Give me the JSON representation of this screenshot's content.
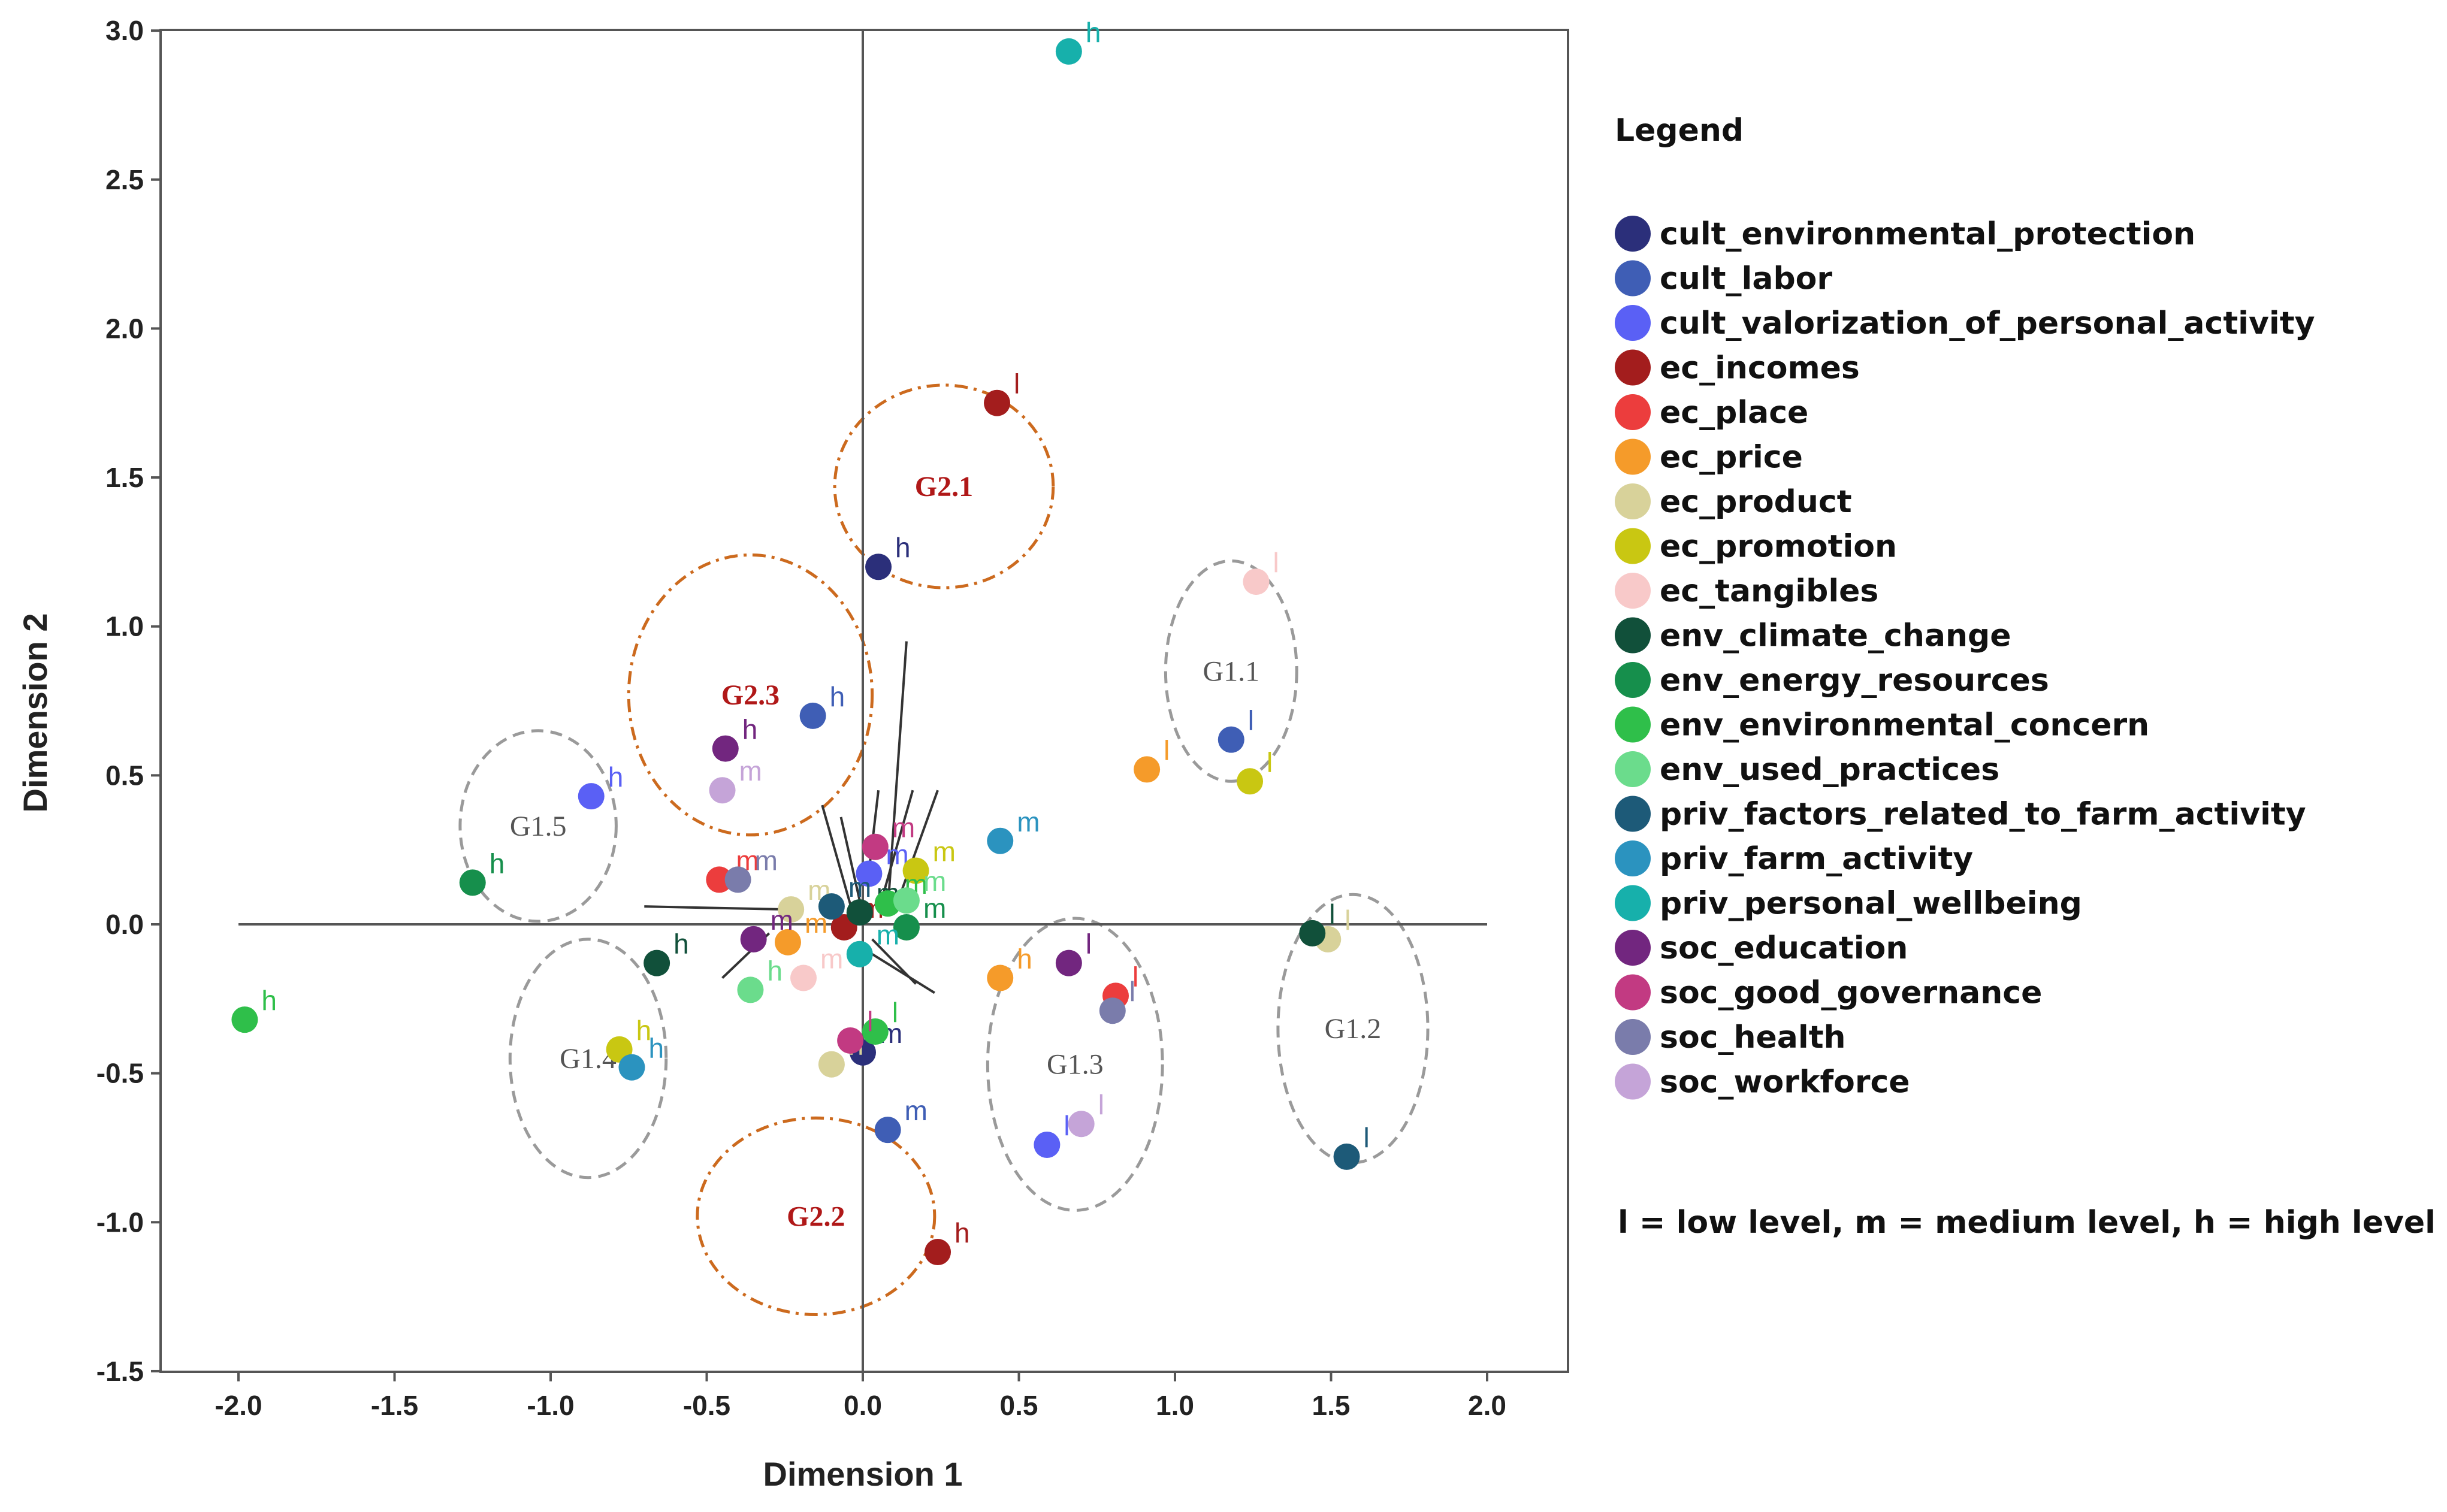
{
  "chart_data": {
    "type": "scatter",
    "xlabel": "Dimension 1",
    "ylabel": "Dimension 2",
    "xlim": [
      -2.25,
      2.25
    ],
    "ylim": [
      -1.5,
      3.0
    ],
    "xticks": [
      "-2.0",
      "-1.5",
      "-1.0",
      "-0.5",
      "0.0",
      "0.5",
      "1.0",
      "1.5",
      "2.0"
    ],
    "xtick_values": [
      -2.0,
      -1.5,
      -1.0,
      -0.5,
      0.0,
      0.5,
      1.0,
      1.5,
      2.0
    ],
    "yticks": [
      "-1.5",
      "-1.0",
      "-0.5",
      "0.0",
      "0.5",
      "1.0",
      "1.5",
      "2.0",
      "2.5",
      "3.0"
    ],
    "ytick_values": [
      -1.5,
      -1.0,
      -0.5,
      0.0,
      0.5,
      1.0,
      1.5,
      2.0,
      2.5,
      3.0
    ],
    "legend_title": "Legend",
    "legend_note": "l = low level, m = medium level, h = high level",
    "series": [
      {
        "name": "cult_environmental_protection",
        "color": "#2b2f7a"
      },
      {
        "name": "cult_labor",
        "color": "#3f5eb5"
      },
      {
        "name": "cult_valorization_of_personal_activity",
        "color": "#5a60f5"
      },
      {
        "name": "ec_incomes",
        "color": "#a31d1d"
      },
      {
        "name": "ec_place",
        "color": "#ec3d3d"
      },
      {
        "name": "ec_price",
        "color": "#f59b2a"
      },
      {
        "name": "ec_product",
        "color": "#d8d29a"
      },
      {
        "name": "ec_promotion",
        "color": "#c9c712"
      },
      {
        "name": "ec_tangibles",
        "color": "#f8c9c9"
      },
      {
        "name": "env_climate_change",
        "color": "#11503a"
      },
      {
        "name": "env_energy_resources",
        "color": "#168f4c"
      },
      {
        "name": "env_environmental_concern",
        "color": "#2fbf4a"
      },
      {
        "name": "env_used_practices",
        "color": "#6bdc8c"
      },
      {
        "name": "priv_factors_related_to_farm_activity",
        "color": "#1d5a78"
      },
      {
        "name": "priv_farm_activity",
        "color": "#2b93bf"
      },
      {
        "name": "priv_personal_wellbeing",
        "color": "#17b0ab"
      },
      {
        "name": "soc_education",
        "color": "#72267f"
      },
      {
        "name": "soc_good_governance",
        "color": "#c23a82"
      },
      {
        "name": "soc_health",
        "color": "#7a7cab"
      },
      {
        "name": "soc_workforce",
        "color": "#c5a4d8"
      }
    ],
    "points": [
      {
        "series": 0,
        "level": "h",
        "x": 0.05,
        "y": 1.2
      },
      {
        "series": 0,
        "level": "m",
        "x": 0.0,
        "y": -0.43
      },
      {
        "series": 1,
        "level": "h",
        "x": -0.16,
        "y": 0.7
      },
      {
        "series": 1,
        "level": "l",
        "x": 1.18,
        "y": 0.62
      },
      {
        "series": 1,
        "level": "m",
        "x": 0.08,
        "y": -0.69
      },
      {
        "series": 2,
        "level": "h",
        "x": -0.87,
        "y": 0.43
      },
      {
        "series": 2,
        "level": "m",
        "x": 0.02,
        "y": 0.17
      },
      {
        "series": 2,
        "level": "l",
        "x": 0.59,
        "y": -0.74
      },
      {
        "series": 3,
        "level": "l",
        "x": 0.43,
        "y": 1.75
      },
      {
        "series": 3,
        "level": "h",
        "x": 0.24,
        "y": -1.1
      },
      {
        "series": 3,
        "level": "m",
        "x": -0.06,
        "y": -0.01
      },
      {
        "series": 4,
        "level": "m",
        "x": -0.46,
        "y": 0.15
      },
      {
        "series": 4,
        "level": "l",
        "x": 0.81,
        "y": -0.24
      },
      {
        "series": 5,
        "level": "l",
        "x": 0.91,
        "y": 0.52
      },
      {
        "series": 5,
        "level": "m",
        "x": -0.24,
        "y": -0.06
      },
      {
        "series": 5,
        "level": "h",
        "x": 0.44,
        "y": -0.18
      },
      {
        "series": 6,
        "level": "m",
        "x": -0.23,
        "y": 0.05
      },
      {
        "series": 6,
        "level": "h",
        "x": -0.1,
        "y": -0.47
      },
      {
        "series": 6,
        "level": "l",
        "x": 1.49,
        "y": -0.05
      },
      {
        "series": 7,
        "level": "l",
        "x": 1.24,
        "y": 0.48
      },
      {
        "series": 7,
        "level": "m",
        "x": 0.17,
        "y": 0.18
      },
      {
        "series": 7,
        "level": "h",
        "x": -0.78,
        "y": -0.42
      },
      {
        "series": 8,
        "level": "l",
        "x": 1.26,
        "y": 1.15
      },
      {
        "series": 8,
        "level": "m",
        "x": -0.19,
        "y": -0.18
      },
      {
        "series": 9,
        "level": "l",
        "x": 1.44,
        "y": -0.03
      },
      {
        "series": 9,
        "level": "m",
        "x": -0.01,
        "y": 0.04
      },
      {
        "series": 9,
        "level": "h",
        "x": -0.66,
        "y": -0.13
      },
      {
        "series": 10,
        "level": "h",
        "x": -1.25,
        "y": 0.14
      },
      {
        "series": 10,
        "level": "m",
        "x": 0.14,
        "y": -0.01
      },
      {
        "series": 11,
        "level": "h",
        "x": -1.98,
        "y": -0.32
      },
      {
        "series": 11,
        "level": "m",
        "x": 0.08,
        "y": 0.07
      },
      {
        "series": 11,
        "level": "l",
        "x": 0.04,
        "y": -0.36
      },
      {
        "series": 12,
        "level": "m",
        "x": 0.14,
        "y": 0.08
      },
      {
        "series": 12,
        "level": "h",
        "x": -0.36,
        "y": -0.22
      },
      {
        "series": 13,
        "level": "m",
        "x": -0.1,
        "y": 0.06
      },
      {
        "series": 13,
        "level": "l",
        "x": 1.55,
        "y": -0.78
      },
      {
        "series": 14,
        "level": "m",
        "x": 0.44,
        "y": 0.28
      },
      {
        "series": 14,
        "level": "h",
        "x": -0.74,
        "y": -0.48
      },
      {
        "series": 15,
        "level": "h",
        "x": 0.66,
        "y": 2.93
      },
      {
        "series": 15,
        "level": "m",
        "x": -0.01,
        "y": -0.1
      },
      {
        "series": 16,
        "level": "h",
        "x": -0.44,
        "y": 0.59
      },
      {
        "series": 16,
        "level": "m",
        "x": -0.35,
        "y": -0.05
      },
      {
        "series": 16,
        "level": "l",
        "x": 0.66,
        "y": -0.13
      },
      {
        "series": 17,
        "level": "m",
        "x": 0.04,
        "y": 0.26
      },
      {
        "series": 17,
        "level": "l",
        "x": -0.04,
        "y": -0.39
      },
      {
        "series": 18,
        "level": "m",
        "x": -0.4,
        "y": 0.15
      },
      {
        "series": 18,
        "level": "l",
        "x": 0.8,
        "y": -0.29
      },
      {
        "series": 19,
        "level": "m",
        "x": -0.45,
        "y": 0.45
      },
      {
        "series": 19,
        "level": "l",
        "x": 0.7,
        "y": -0.67
      }
    ],
    "annotations": [
      {
        "label": "G1.1",
        "cx": 1.18,
        "cy": 0.85,
        "style": "gray"
      },
      {
        "label": "G1.2",
        "cx": 1.57,
        "cy": -0.35,
        "style": "gray"
      },
      {
        "label": "G1.3",
        "cx": 0.68,
        "cy": -0.47,
        "style": "gray"
      },
      {
        "label": "G1.4",
        "cx": -0.88,
        "cy": -0.45,
        "style": "gray"
      },
      {
        "label": "G1.5",
        "cx": -1.04,
        "cy": 0.33,
        "style": "gray"
      },
      {
        "label": "G2.1",
        "cx": 0.26,
        "cy": 1.47,
        "style": "red"
      },
      {
        "label": "G2.2",
        "cx": -0.15,
        "cy": -0.98,
        "style": "red"
      },
      {
        "label": "G2.3",
        "cx": -0.36,
        "cy": 0.77,
        "style": "red"
      }
    ]
  }
}
